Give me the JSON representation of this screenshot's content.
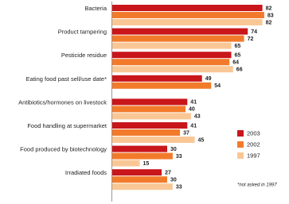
{
  "chart_data": {
    "type": "bar",
    "orientation": "horizontal",
    "categories": [
      "Bacteria",
      "Product tampering",
      "Pesticide residue",
      "Eating food past sell/use date*",
      "Antibiotics/hormones on livestock",
      "Food handling at supermarket",
      "Food produced by biotechnology",
      "Irradiated foods"
    ],
    "series": [
      {
        "name": "2003",
        "color": "#c8161b",
        "values": [
          82,
          74,
          65,
          49,
          41,
          41,
          30,
          27
        ]
      },
      {
        "name": "2002",
        "color": "#f27b2b",
        "values": [
          83,
          72,
          64,
          54,
          40,
          37,
          33,
          30
        ]
      },
      {
        "name": "1997",
        "color": "#f9c796",
        "values": [
          82,
          65,
          66,
          null,
          43,
          45,
          15,
          33
        ]
      }
    ],
    "annotation": "*not asked in 1997",
    "legend": "right"
  }
}
